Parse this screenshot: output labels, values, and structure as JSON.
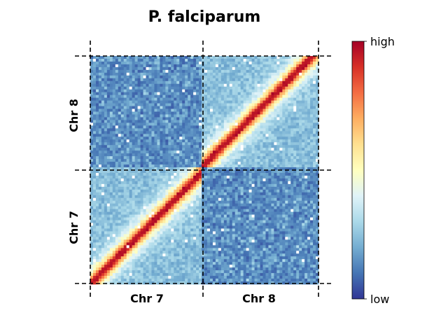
{
  "chart_data": {
    "type": "heatmap",
    "title": "P. falciparum",
    "x_tick_labels": [
      "Chr 7",
      "Chr 8"
    ],
    "y_tick_labels": [
      "Chr 7",
      "Chr 8"
    ],
    "colorbar": {
      "colormap": "RdYlBu_r",
      "max_label": "high",
      "min_label": "low",
      "colors": [
        "#313695",
        "#4575b4",
        "#74add1",
        "#abd9e9",
        "#e0f3f8",
        "#ffffbf",
        "#fee090",
        "#fdae61",
        "#f46d43",
        "#d73027",
        "#a50026"
      ]
    },
    "blocks": [
      {
        "row": "Chr 8",
        "col": "Chr 7",
        "description_level": "low contact",
        "level": 0.15
      },
      {
        "row": "Chr 8",
        "col": "Chr 8",
        "description_level": "intra-chromosomal, high diagonal",
        "level": 0.9
      },
      {
        "row": "Chr 7",
        "col": "Chr 7",
        "description_level": "intra-chromosomal, high diagonal",
        "level": 0.9
      },
      {
        "row": "Chr 7",
        "col": "Chr 8",
        "description_level": "low contact",
        "level": 0.12
      }
    ],
    "grid": "dashed black lines at chromosome boundaries",
    "legend": "colorbar right"
  }
}
